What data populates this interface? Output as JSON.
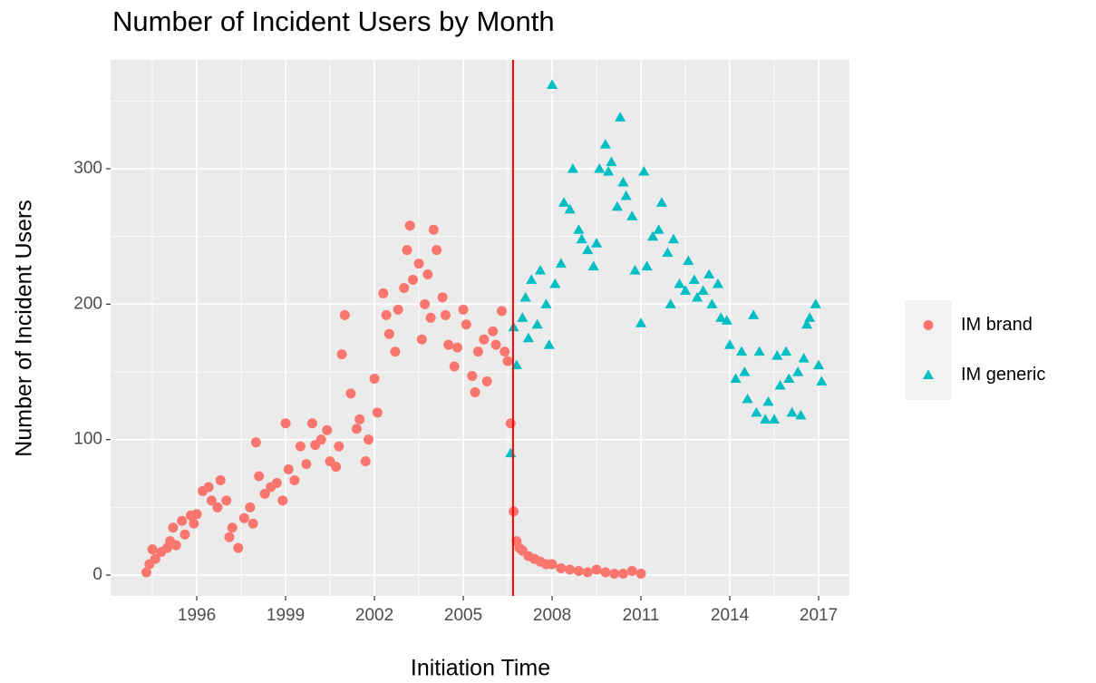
{
  "chart_data": {
    "type": "scatter",
    "title": "Number of Incident Users by Month",
    "x_label": "Initiation Time",
    "y_label": "Number of Incident Users",
    "xlim": [
      1993.09,
      2018.04
    ],
    "xticks": [
      1996,
      1999,
      2002,
      2005,
      2008,
      2011,
      2014,
      2017
    ],
    "ylim": [
      -15.4,
      380.4
    ],
    "yticks": [
      0,
      100,
      200,
      300
    ],
    "grid": true,
    "legend": "right",
    "vline": {
      "x": 2006.68,
      "color": "#ff0000"
    },
    "series": [
      {
        "name": "IM brand",
        "color": "#F8766D",
        "shape": "circle",
        "x": [
          1994.3,
          1994.4,
          1994.5,
          1994.6,
          1994.8,
          1995.0,
          1995.1,
          1995.2,
          1995.3,
          1995.5,
          1995.6,
          1995.8,
          1995.9,
          1996.0,
          1996.2,
          1996.4,
          1996.5,
          1996.7,
          1996.8,
          1997.0,
          1997.1,
          1997.2,
          1997.4,
          1997.6,
          1997.8,
          1997.9,
          1998.0,
          1998.1,
          1998.3,
          1998.5,
          1998.7,
          1998.9,
          1999.0,
          1999.1,
          1999.3,
          1999.5,
          1999.7,
          1999.9,
          2000.0,
          2000.2,
          2000.4,
          2000.5,
          2000.7,
          2000.8,
          2000.9,
          2001.0,
          2001.2,
          2001.4,
          2001.5,
          2001.7,
          2001.8,
          2002.0,
          2002.1,
          2002.3,
          2002.4,
          2002.5,
          2002.7,
          2002.8,
          2003.0,
          2003.1,
          2003.2,
          2003.3,
          2003.5,
          2003.6,
          2003.7,
          2003.8,
          2003.9,
          2004.0,
          2004.1,
          2004.3,
          2004.4,
          2004.5,
          2004.7,
          2004.8,
          2005.0,
          2005.1,
          2005.3,
          2005.4,
          2005.5,
          2005.7,
          2005.8,
          2006.0,
          2006.1,
          2006.3,
          2006.4,
          2006.5,
          2006.6,
          2006.7,
          2006.8,
          2006.9,
          2007.0,
          2007.2,
          2007.4,
          2007.6,
          2007.8,
          2008.0,
          2008.3,
          2008.6,
          2008.9,
          2009.2,
          2009.5,
          2009.8,
          2010.1,
          2010.4,
          2010.7,
          2011.0
        ],
        "values": [
          2,
          8,
          19,
          12,
          17,
          20,
          25,
          35,
          22,
          40,
          30,
          44,
          38,
          45,
          62,
          65,
          55,
          50,
          70,
          55,
          28,
          35,
          20,
          42,
          50,
          38,
          98,
          73,
          60,
          65,
          68,
          55,
          112,
          78,
          70,
          95,
          82,
          112,
          96,
          100,
          107,
          84,
          80,
          95,
          163,
          192,
          134,
          108,
          115,
          84,
          100,
          145,
          120,
          208,
          192,
          178,
          165,
          196,
          212,
          240,
          258,
          218,
          230,
          174,
          200,
          222,
          190,
          255,
          240,
          205,
          192,
          170,
          154,
          168,
          196,
          185,
          147,
          135,
          165,
          174,
          143,
          180,
          170,
          195,
          165,
          158,
          112,
          47,
          25,
          20,
          18,
          14,
          12,
          10,
          8,
          8,
          5,
          4,
          3,
          2,
          4,
          2,
          1,
          1,
          3,
          1
        ]
      },
      {
        "name": "IM generic",
        "color": "#00BFC4",
        "shape": "triangle",
        "x": [
          2006.6,
          2006.7,
          2006.8,
          2007.0,
          2007.1,
          2007.2,
          2007.3,
          2007.5,
          2007.6,
          2007.8,
          2007.9,
          2008.0,
          2008.1,
          2008.3,
          2008.4,
          2008.6,
          2008.7,
          2008.9,
          2009.0,
          2009.2,
          2009.4,
          2009.5,
          2009.6,
          2009.8,
          2009.9,
          2010.0,
          2010.2,
          2010.3,
          2010.4,
          2010.5,
          2010.7,
          2010.8,
          2011.0,
          2011.1,
          2011.2,
          2011.4,
          2011.6,
          2011.7,
          2011.9,
          2012.0,
          2012.1,
          2012.3,
          2012.5,
          2012.6,
          2012.8,
          2012.9,
          2013.1,
          2013.3,
          2013.4,
          2013.6,
          2013.7,
          2013.9,
          2014.0,
          2014.2,
          2014.4,
          2014.5,
          2014.6,
          2014.8,
          2014.9,
          2015.0,
          2015.2,
          2015.3,
          2015.5,
          2015.6,
          2015.7,
          2015.9,
          2016.0,
          2016.1,
          2016.3,
          2016.4,
          2016.5,
          2016.6,
          2016.7,
          2016.9,
          2017.0,
          2017.1
        ],
        "values": [
          90,
          183,
          155,
          190,
          205,
          175,
          218,
          185,
          225,
          200,
          170,
          362,
          215,
          230,
          275,
          270,
          300,
          255,
          248,
          240,
          228,
          245,
          300,
          318,
          298,
          305,
          272,
          338,
          290,
          280,
          265,
          225,
          186,
          298,
          228,
          250,
          255,
          275,
          238,
          200,
          248,
          215,
          210,
          232,
          218,
          205,
          210,
          222,
          200,
          215,
          190,
          188,
          170,
          145,
          165,
          150,
          130,
          192,
          120,
          165,
          115,
          128,
          115,
          162,
          140,
          165,
          145,
          120,
          150,
          118,
          160,
          185,
          190,
          200,
          155,
          143
        ]
      }
    ]
  }
}
